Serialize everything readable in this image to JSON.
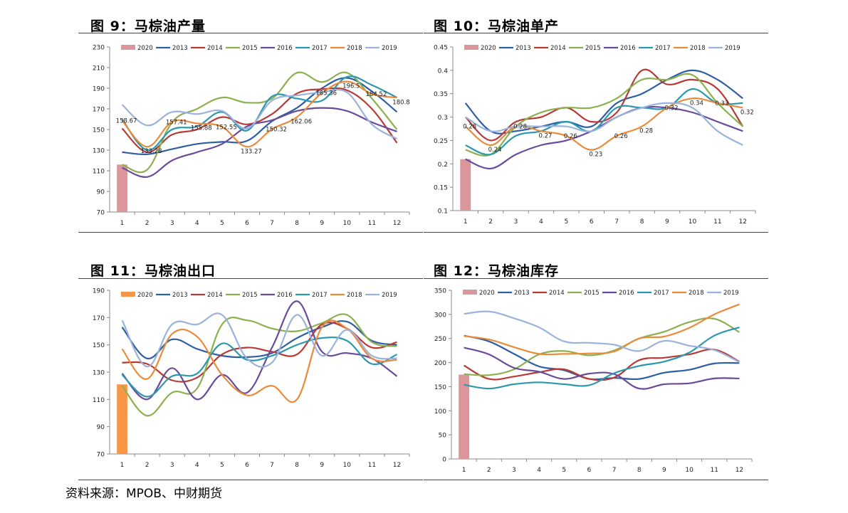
{
  "titles": {
    "fig9": "图 9：马棕油产量",
    "fig10": "图 10：马棕油单产",
    "fig11": "图 11：马棕油出口",
    "fig12": "图 12：马棕油库存"
  },
  "source": "资料来源：MPOB、中财期货",
  "legend_names": [
    "2020",
    "2013",
    "2014",
    "2015",
    "2016",
    "2017",
    "2018",
    "2019"
  ],
  "colors": {
    "2020": "#d9979b",
    "2020_exports": "#f79646",
    "2013": "#2e5fa3",
    "2014": "#b83a36",
    "2015": "#8bb04e",
    "2016": "#6a4a9a",
    "2017": "#2c98ad",
    "2018": "#ea8a3a",
    "2019": "#9ab2dc"
  },
  "chart_data": [
    {
      "id": "fig9",
      "type": "line",
      "title": "图 9：马棕油产量",
      "x": [
        1,
        2,
        3,
        4,
        5,
        6,
        7,
        8,
        9,
        10,
        11,
        12
      ],
      "ylim": [
        70,
        230
      ],
      "yticks": [
        70,
        90,
        110,
        130,
        150,
        170,
        190,
        210,
        230
      ],
      "bar": {
        "name": "2020",
        "x": 1,
        "value": 116
      },
      "series": [
        {
          "name": "2013",
          "values": [
            128,
            126,
            131,
            136,
            138,
            139,
            158,
            171,
            190,
            200,
            187,
            167
          ]
        },
        {
          "name": "2014",
          "values": [
            151,
            128,
            145,
            150,
            162,
            155,
            165,
            185,
            189,
            188,
            170,
            137
          ]
        },
        {
          "name": "2015",
          "values": [
            116,
            111,
            157,
            170,
            181,
            176,
            180,
            205,
            196,
            205,
            180,
            150
          ]
        },
        {
          "name": "2016",
          "values": [
            113,
            104,
            120,
            128,
            136,
            153,
            159,
            168,
            171,
            168,
            157,
            148
          ]
        },
        {
          "name": "2017",
          "values": [
            160,
            130,
            150,
            153,
            167,
            149,
            182,
            180,
            178,
            201,
            193,
            181
          ]
        },
        {
          "name": "2018",
          "values": [
            158.67,
            133.28,
            157.41,
            155.88,
            152.55,
            133.27,
            150.32,
            162.06,
            185.36,
            196.5,
            184.52,
            180.8
          ]
        },
        {
          "name": "2019",
          "values": [
            174,
            154,
            167,
            165,
            168,
            151,
            178,
            183,
            186,
            186,
            155,
            141
          ]
        }
      ],
      "data_labels": [
        {
          "x": 1,
          "value": 158.67,
          "text": "158.67"
        },
        {
          "x": 2,
          "value": 133.28,
          "text": "133.28"
        },
        {
          "x": 3,
          "value": 157.41,
          "text": "157.41"
        },
        {
          "x": 4,
          "value": 155.88,
          "text": "155.88"
        },
        {
          "x": 5,
          "value": 152.55,
          "text": "152.55"
        },
        {
          "x": 6,
          "value": 133.27,
          "text": "133.27"
        },
        {
          "x": 7,
          "value": 150.32,
          "text": "150.32"
        },
        {
          "x": 8,
          "value": 162.06,
          "text": "162.06"
        },
        {
          "x": 9,
          "value": 185.36,
          "text": "185.36"
        },
        {
          "x": 10,
          "value": 196.5,
          "text": "196.5"
        },
        {
          "x": 11,
          "value": 184.52,
          "text": "184.52"
        },
        {
          "x": 12,
          "value": 180.8,
          "text": "180.8"
        }
      ]
    },
    {
      "id": "fig10",
      "type": "line",
      "title": "图 10：马棕油单产",
      "x": [
        1,
        2,
        3,
        4,
        5,
        6,
        7,
        8,
        9,
        10,
        11,
        12
      ],
      "ylim": [
        0.1,
        0.45
      ],
      "yticks": [
        0.1,
        0.15,
        0.2,
        0.25,
        0.3,
        0.35,
        0.4,
        0.45
      ],
      "bar": {
        "name": "2020",
        "x": 1,
        "value": 0.21
      },
      "series": [
        {
          "name": "2013",
          "values": [
            0.33,
            0.27,
            0.27,
            0.28,
            0.29,
            0.28,
            0.33,
            0.35,
            0.38,
            0.4,
            0.38,
            0.34
          ]
        },
        {
          "name": "2014",
          "values": [
            0.3,
            0.25,
            0.29,
            0.3,
            0.32,
            0.29,
            0.31,
            0.4,
            0.37,
            0.38,
            0.36,
            0.28
          ]
        },
        {
          "name": "2015",
          "values": [
            0.23,
            0.22,
            0.28,
            0.31,
            0.32,
            0.32,
            0.34,
            0.38,
            0.38,
            0.39,
            0.33,
            0.28
          ]
        },
        {
          "name": "2016",
          "values": [
            0.21,
            0.19,
            0.22,
            0.24,
            0.25,
            0.27,
            0.3,
            0.32,
            0.32,
            0.31,
            0.29,
            0.27
          ]
        },
        {
          "name": "2017",
          "values": [
            0.24,
            0.22,
            0.26,
            0.27,
            0.29,
            0.27,
            0.32,
            0.32,
            0.32,
            0.36,
            0.33,
            0.33
          ]
        },
        {
          "name": "2018",
          "values": [
            0.28,
            0.24,
            0.28,
            0.27,
            0.26,
            0.23,
            0.26,
            0.28,
            0.32,
            0.34,
            0.33,
            0.32
          ]
        },
        {
          "name": "2019",
          "values": [
            0.3,
            0.27,
            0.28,
            0.28,
            0.28,
            0.27,
            0.3,
            0.32,
            0.33,
            0.32,
            0.27,
            0.24
          ]
        }
      ],
      "data_labels": [
        {
          "x": 1,
          "value": 0.28,
          "text": "0.28"
        },
        {
          "x": 2,
          "value": 0.24,
          "text": "0.24"
        },
        {
          "x": 3,
          "value": 0.28,
          "text": "0.28"
        },
        {
          "x": 4,
          "value": 0.27,
          "text": "0.27"
        },
        {
          "x": 5,
          "value": 0.26,
          "text": "0.26"
        },
        {
          "x": 6,
          "value": 0.23,
          "text": "0.23"
        },
        {
          "x": 7,
          "value": 0.26,
          "text": "0.26"
        },
        {
          "x": 8,
          "value": 0.28,
          "text": "0.28"
        },
        {
          "x": 9,
          "value": 0.32,
          "text": "0.32"
        },
        {
          "x": 10,
          "value": 0.34,
          "text": "0.34"
        },
        {
          "x": 11,
          "value": 0.33,
          "text": "0.33"
        },
        {
          "x": 12,
          "value": 0.32,
          "text": "0.32"
        }
      ]
    },
    {
      "id": "fig11",
      "type": "line",
      "title": "图 11：马棕油出口",
      "x": [
        1,
        2,
        3,
        4,
        5,
        6,
        7,
        8,
        9,
        10,
        11,
        12
      ],
      "ylim": [
        70,
        190
      ],
      "yticks": [
        70,
        90,
        110,
        130,
        150,
        170,
        190
      ],
      "bar": {
        "name": "2020",
        "x": 1,
        "value": 121
      },
      "series": [
        {
          "name": "2013",
          "values": [
            163,
            140,
            154,
            147,
            142,
            141,
            144,
            155,
            163,
            167,
            153,
            150
          ]
        },
        {
          "name": "2014",
          "values": [
            137,
            136,
            124,
            126,
            143,
            148,
            145,
            143,
            165,
            162,
            148,
            152
          ]
        },
        {
          "name": "2015",
          "values": [
            120,
            98,
            115,
            118,
            165,
            168,
            162,
            160,
            166,
            172,
            152,
            149
          ]
        },
        {
          "name": "2016",
          "values": [
            129,
            110,
            133,
            110,
            128,
            115,
            148,
            182,
            145,
            144,
            140,
            127
          ]
        },
        {
          "name": "2017",
          "values": [
            128,
            112,
            127,
            129,
            151,
            139,
            142,
            150,
            155,
            153,
            136,
            143
          ]
        },
        {
          "name": "2018",
          "values": [
            147,
            125,
            158,
            156,
            128,
            113,
            120,
            110,
            163,
            162,
            140,
            139
          ]
        },
        {
          "name": "2019",
          "values": [
            168,
            134,
            165,
            165,
            172,
            140,
            137,
            172,
            142,
            161,
            142,
            140
          ]
        }
      ]
    },
    {
      "id": "fig12",
      "type": "line",
      "title": "图 12：马棕油库存",
      "x": [
        1,
        2,
        3,
        4,
        5,
        6,
        7,
        8,
        9,
        10,
        11,
        12
      ],
      "ylim": [
        0,
        350
      ],
      "yticks": [
        0,
        50,
        100,
        150,
        200,
        250,
        300,
        350
      ],
      "bar": {
        "name": "2020",
        "x": 1,
        "value": 175
      },
      "series": [
        {
          "name": "2013",
          "values": [
            256,
            244,
            218,
            192,
            184,
            166,
            168,
            166,
            179,
            185,
            198,
            199
          ]
        },
        {
          "name": "2014",
          "values": [
            194,
            166,
            171,
            180,
            186,
            166,
            169,
            205,
            210,
            217,
            227,
            202
          ]
        },
        {
          "name": "2015",
          "values": [
            176,
            174,
            186,
            217,
            224,
            215,
            225,
            250,
            264,
            284,
            291,
            263
          ]
        },
        {
          "name": "2016",
          "values": [
            231,
            217,
            189,
            181,
            166,
            177,
            176,
            146,
            155,
            157,
            167,
            167
          ]
        },
        {
          "name": "2017",
          "values": [
            154,
            146,
            155,
            159,
            155,
            153,
            178,
            193,
            202,
            221,
            256,
            273
          ]
        },
        {
          "name": "2018",
          "values": [
            255,
            248,
            232,
            218,
            218,
            219,
            223,
            250,
            254,
            272,
            300,
            321
          ]
        },
        {
          "name": "2019",
          "values": [
            301,
            306,
            292,
            273,
            244,
            241,
            237,
            224,
            245,
            235,
            226,
            201
          ]
        }
      ]
    }
  ]
}
